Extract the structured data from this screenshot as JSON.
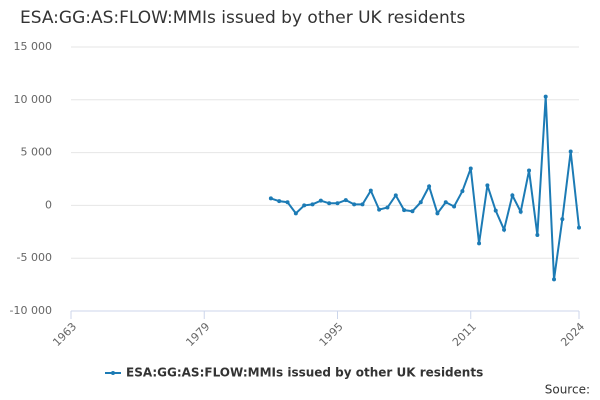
{
  "chart_data": {
    "type": "line",
    "title": "ESA:GG:AS:FLOW:MMIs issued by other UK residents",
    "x": [
      1987,
      1988,
      1989,
      1990,
      1991,
      1992,
      1993,
      1994,
      1995,
      1996,
      1997,
      1998,
      1999,
      2000,
      2001,
      2002,
      2003,
      2004,
      2005,
      2006,
      2007,
      2008,
      2009,
      2010,
      2011,
      2012,
      2013,
      2014,
      2015,
      2016,
      2017,
      2018,
      2019,
      2020,
      2021,
      2022,
      2023,
      2024
    ],
    "series": [
      {
        "name": "ESA:GG:AS:FLOW:MMIs issued by other UK residents",
        "color": "#1c7bb5",
        "values": [
          660,
          400,
          300,
          -750,
          0,
          100,
          450,
          200,
          200,
          500,
          100,
          100,
          1400,
          -400,
          -200,
          950,
          -450,
          -550,
          300,
          1800,
          -750,
          300,
          -100,
          1350,
          3500,
          -3600,
          1900,
          -500,
          -2300,
          950,
          -600,
          3300,
          -2800,
          10300,
          -7000,
          -1300,
          5100,
          -2100
        ]
      }
    ],
    "xlim": [
      1963,
      2024
    ],
    "xticks": [
      1963,
      1979,
      1995,
      2011,
      2024
    ],
    "ylim": [
      -10000,
      15000
    ],
    "yticks": [
      {
        "value": -10000,
        "label": "-10 000"
      },
      {
        "value": -5000,
        "label": "-5 000"
      },
      0,
      {
        "value": 5000,
        "label": "5 000"
      },
      {
        "value": 10000,
        "label": "10 000"
      },
      {
        "value": 15000,
        "label": "15 000"
      }
    ],
    "grid": true,
    "legend": "bottom",
    "source": "Source:"
  }
}
